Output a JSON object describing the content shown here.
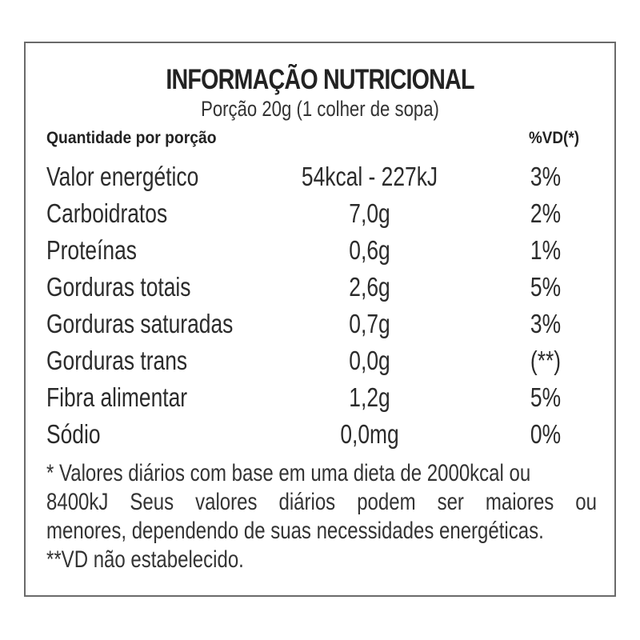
{
  "title": "INFORMAÇÃO NUTRICIONAL",
  "portion": "Porção 20g (1 colher de sopa)",
  "headers": {
    "quantity": "Quantidade por porção",
    "vd": "%VD(*)"
  },
  "rows": [
    {
      "name": "Valor energético",
      "amount": "54kcal - 227kJ",
      "vd": "3%"
    },
    {
      "name": "Carboidratos",
      "amount": "7,0g",
      "vd": "2%"
    },
    {
      "name": "Proteínas",
      "amount": "0,6g",
      "vd": "1%"
    },
    {
      "name": "Gorduras totais",
      "amount": "2,6g",
      "vd": "5%"
    },
    {
      "name": "Gorduras saturadas",
      "amount": "0,7g",
      "vd": "3%"
    },
    {
      "name": "Gorduras trans",
      "amount": "0,0g",
      "vd": "(**)"
    },
    {
      "name": "Fibra alimentar",
      "amount": "1,2g",
      "vd": "5%"
    },
    {
      "name": "Sódio",
      "amount": "0,0mg",
      "vd": "0%"
    }
  ],
  "footnote": {
    "line1": "* Valores diários com base em uma dieta de 2000kcal ou",
    "line2": "8400kJ Seus valores diários podem ser maiores ou",
    "line3": "menores, dependendo de suas necessidades energéticas.",
    "line4": "**VD não estabelecido."
  }
}
